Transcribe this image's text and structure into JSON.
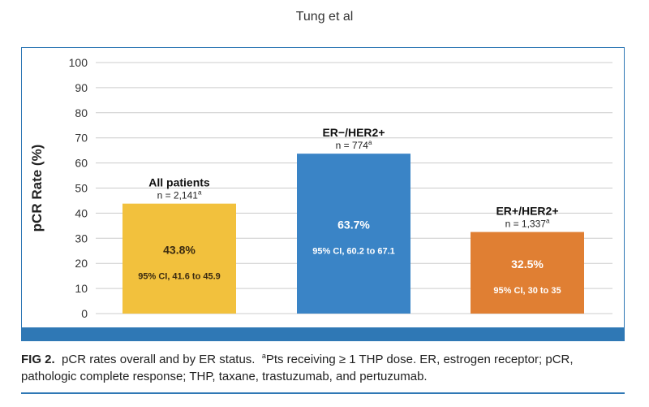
{
  "header": {
    "author": "Tung et al"
  },
  "chart_data": {
    "type": "bar",
    "ylabel": "pCR Rate (%)",
    "ylim": [
      0,
      100
    ],
    "yticks": [
      0,
      10,
      20,
      30,
      40,
      50,
      60,
      70,
      80,
      90,
      100
    ],
    "grid": true,
    "categories": [
      "All patients",
      "ER−/HER2+",
      "ER+/HER2+"
    ],
    "sample_sizes": [
      "n = 2,141",
      "n = 774",
      "n = 1,337"
    ],
    "footnote_marker": "a",
    "values": [
      43.8,
      63.7,
      32.5
    ],
    "value_labels": [
      "43.8%",
      "63.7%",
      "32.5%"
    ],
    "ci_labels": [
      "95% CI, 41.6 to 45.9",
      "95% CI, 60.2 to 67.1",
      "95% CI, 30 to 35"
    ],
    "colors": [
      "#f2c13d",
      "#3a84c6",
      "#e07f33"
    ],
    "value_text_colors": [
      "#3a2a10",
      "#ffffff",
      "#ffffff"
    ]
  },
  "caption": {
    "label": "FIG 2.",
    "text": "pCR rates overall and by ER status.",
    "footnote_marker": "a",
    "footnote": "Pts receiving ≥ 1 THP dose. ER, estrogen receptor; pCR, pathologic complete response; THP, taxane, trastuzumab, and pertuzumab."
  },
  "colors": {
    "accent": "#2f78b5",
    "grid": "#cccccc"
  }
}
